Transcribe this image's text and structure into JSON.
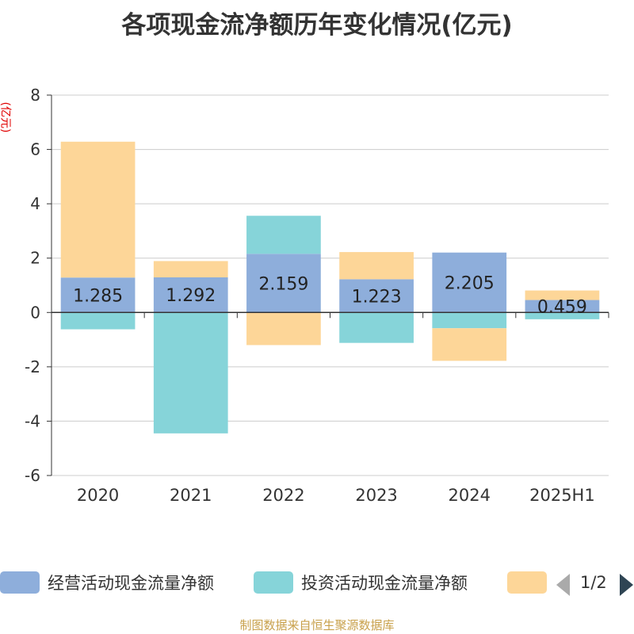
{
  "title": "各项现金流净额历年变化情况(亿元)",
  "unit_label": "(亿元)",
  "footer": "制图数据来自恒生聚源数据库",
  "legend": {
    "items": [
      {
        "label": "经营活动现金流量净额",
        "color": "#8eaedb"
      },
      {
        "label": "投资活动现金流量净额",
        "color": "#86d4d9"
      },
      {
        "label": "",
        "color": "#fdd698"
      }
    ],
    "page_text": "1/2"
  },
  "chart_data": {
    "type": "bar",
    "stacked": true,
    "categories": [
      "2020",
      "2021",
      "2022",
      "2023",
      "2024",
      "2025H1"
    ],
    "series": [
      {
        "name": "经营活动现金流量净额",
        "color": "#8eaedb",
        "values": [
          1.285,
          1.292,
          2.159,
          1.223,
          2.205,
          0.459
        ]
      },
      {
        "name": "投资活动现金流量净额",
        "color": "#86d4d9",
        "values": [
          -0.62,
          -4.45,
          1.4,
          -1.12,
          -0.58,
          -0.25
        ]
      },
      {
        "color": "#fdd698",
        "values": [
          5.0,
          0.6,
          -1.2,
          1.0,
          -1.2,
          0.35
        ]
      }
    ],
    "data_labels": [
      "1.285",
      "1.292",
      "2.159",
      "1.223",
      "2.205",
      "0.459"
    ],
    "ylim": [
      -6,
      8
    ],
    "yticks": [
      -6,
      -4,
      -2,
      0,
      2,
      4,
      6,
      8
    ],
    "grid": true
  }
}
